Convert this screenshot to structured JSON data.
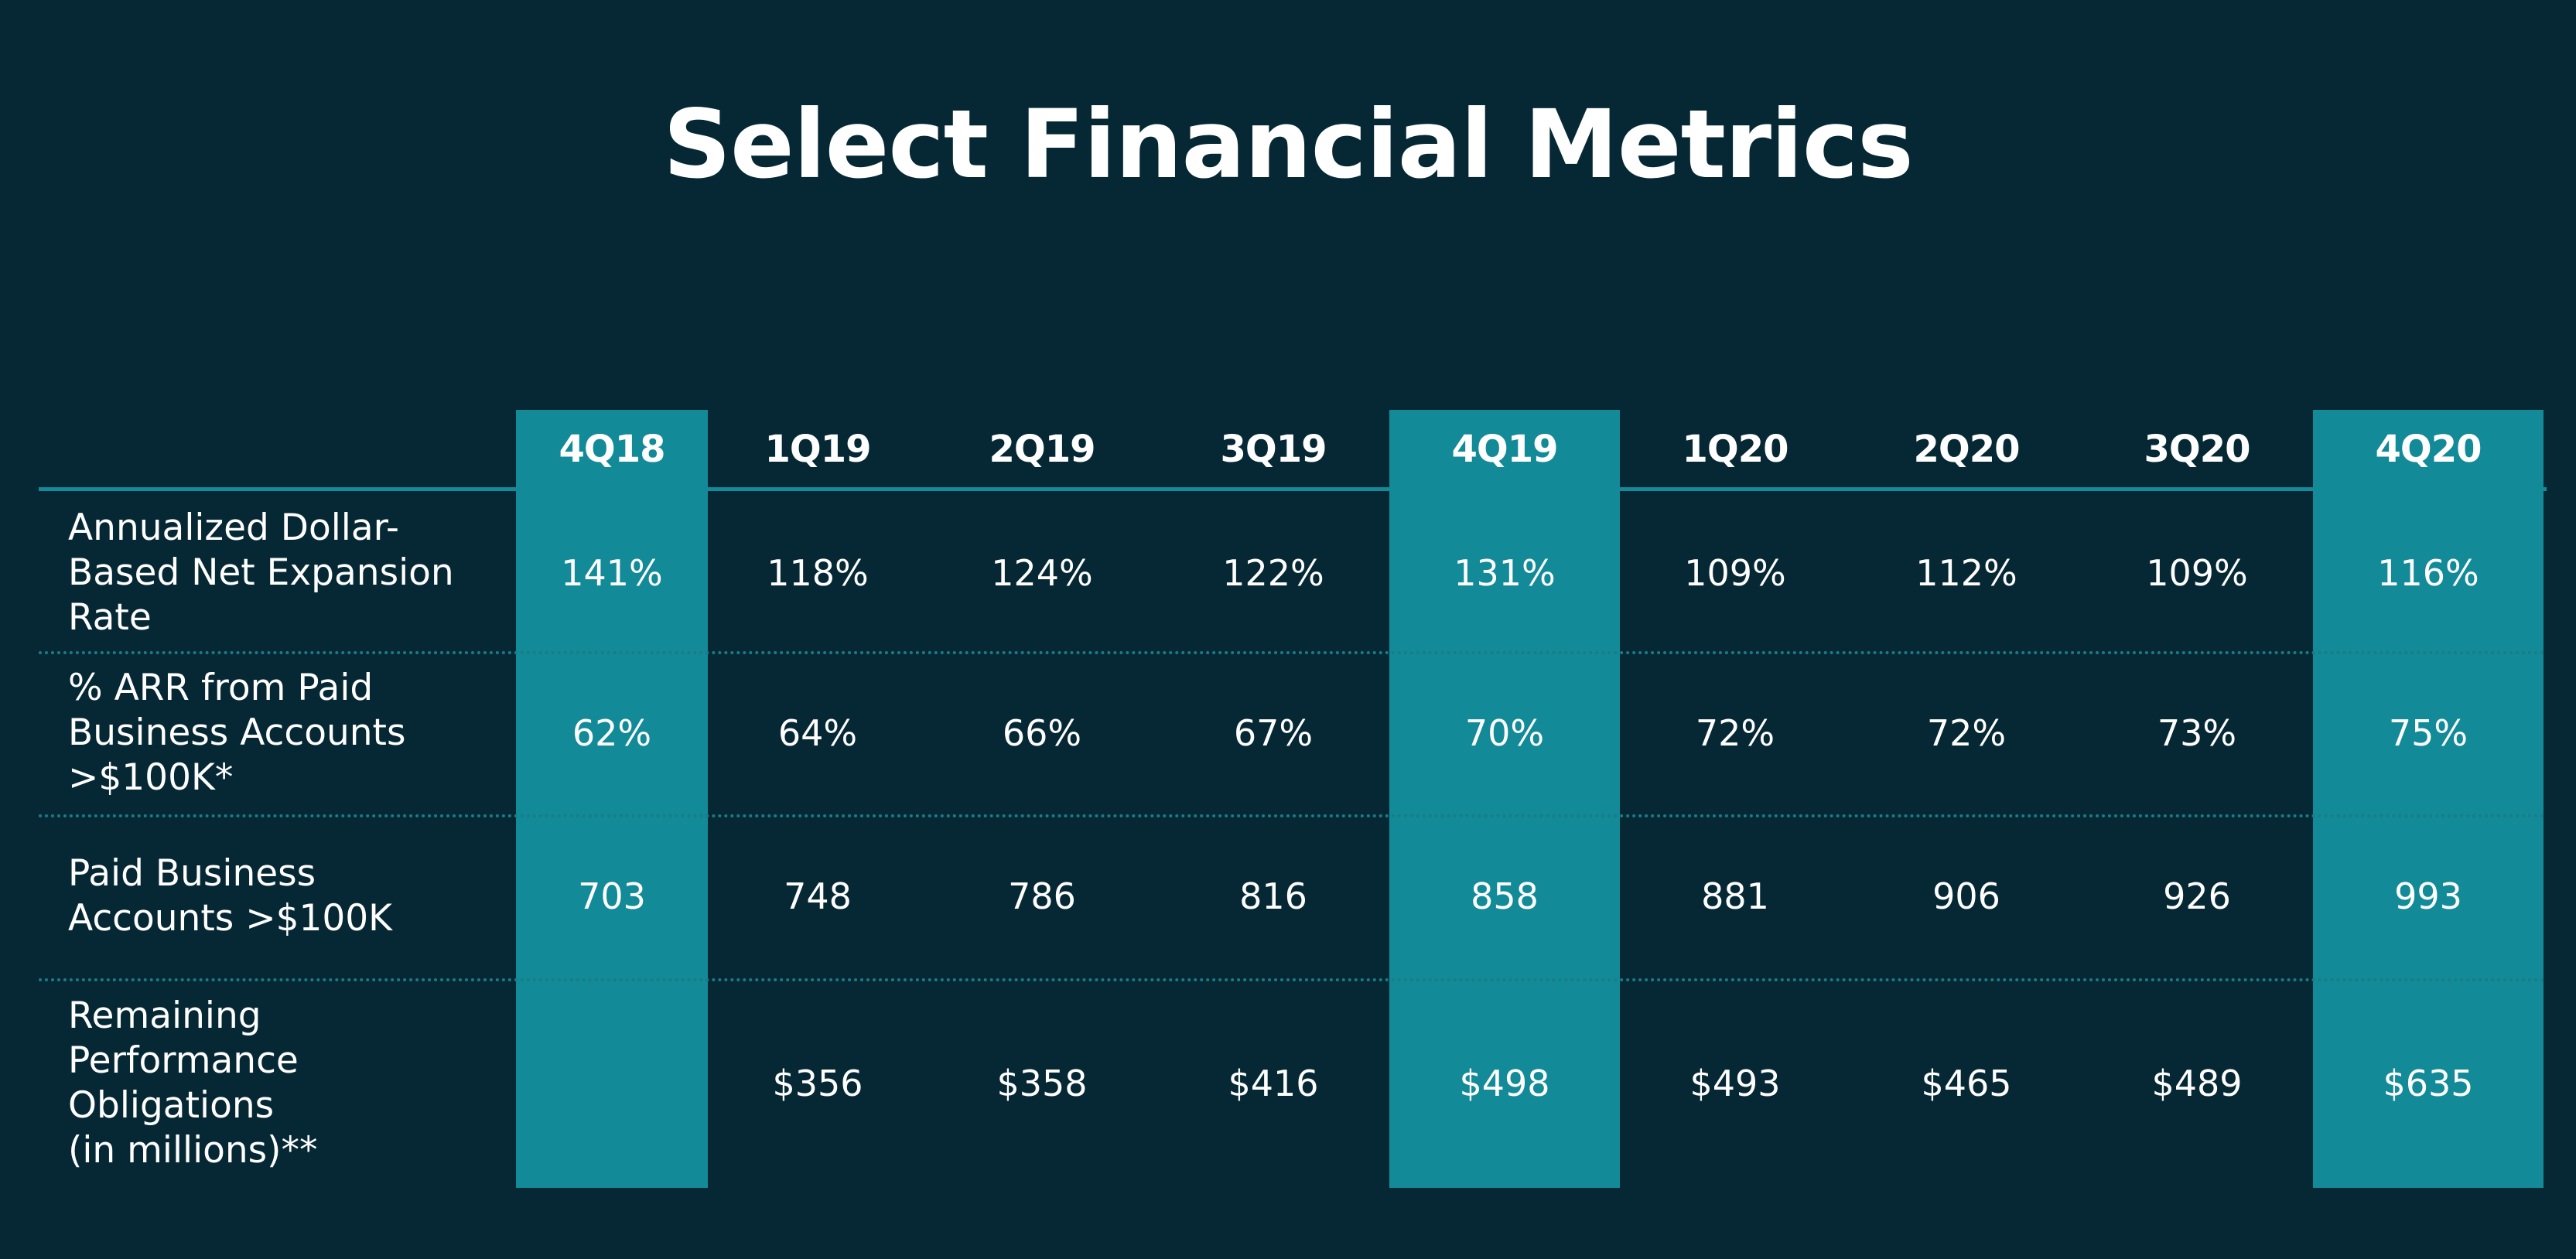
{
  "title": "Select Financial Metrics",
  "colors": {
    "background": "#052834",
    "highlight": "#128a98",
    "text": "#ffffff"
  },
  "chart_data": {
    "type": "table",
    "title": "Select Financial Metrics",
    "columns": [
      "4Q18",
      "1Q19",
      "2Q19",
      "3Q19",
      "4Q19",
      "1Q20",
      "2Q20",
      "3Q20",
      "4Q20"
    ],
    "highlighted_columns": [
      "4Q18",
      "4Q19",
      "4Q20"
    ],
    "rows": [
      {
        "label_lines": [
          "Annualized Dollar-",
          "Based Net Expansion",
          "Rate"
        ],
        "values": [
          "141%",
          "118%",
          "124%",
          "122%",
          "131%",
          "109%",
          "112%",
          "109%",
          "116%"
        ]
      },
      {
        "label_lines": [
          "% ARR from Paid",
          "Business Accounts",
          ">$100K*"
        ],
        "values": [
          "62%",
          "64%",
          "66%",
          "67%",
          "70%",
          "72%",
          "72%",
          "73%",
          "75%"
        ]
      },
      {
        "label_lines": [
          "Paid Business",
          "Accounts >$100K"
        ],
        "values": [
          "703",
          "748",
          "786",
          "816",
          "858",
          "881",
          "906",
          "926",
          "993"
        ]
      },
      {
        "label_lines": [
          "Remaining",
          "Performance",
          "Obligations",
          "(in millions)**"
        ],
        "values": [
          "",
          "$356",
          "$358",
          "$416",
          "$498",
          "$493",
          "$465",
          "$489",
          "$635"
        ]
      }
    ]
  }
}
